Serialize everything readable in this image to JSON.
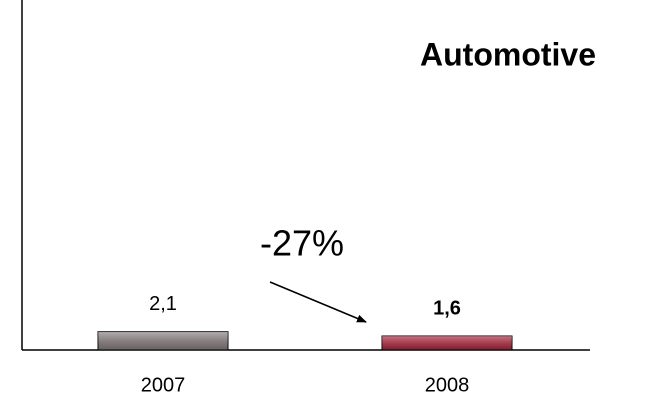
{
  "chart_data": {
    "type": "bar",
    "title": "Automotive",
    "categories": [
      "2007",
      "2008"
    ],
    "values": [
      2.1,
      1.6
    ],
    "value_labels": [
      "2,1",
      "1,6"
    ],
    "colors": [
      "#8c8282",
      "#b3243c"
    ],
    "annotation": "-27%",
    "ylim": [
      0,
      40
    ]
  }
}
